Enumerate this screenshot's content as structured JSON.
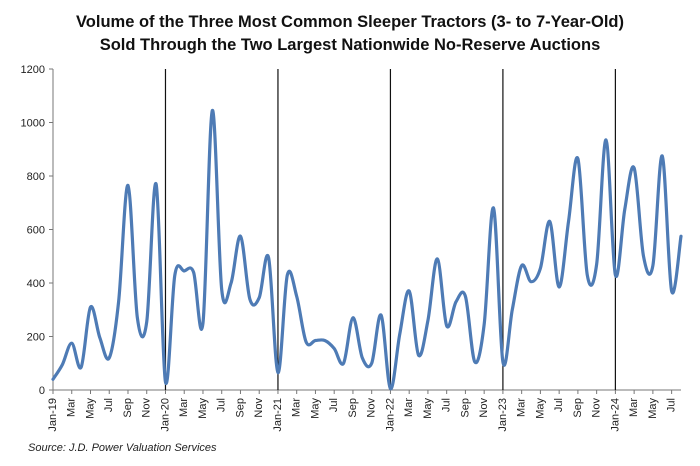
{
  "chart_data": {
    "type": "line",
    "title": "Volume of the Three Most Common Sleeper Tractors (3- to 7-Year-Old) Sold Through the Two Largest Nationwide No-Reserve Auctions",
    "title_lines": [
      "Volume of the Three Most Common Sleeper Tractors (3- to 7-Year-Old)",
      "Sold Through the Two Largest Nationwide No-Reserve Auctions"
    ],
    "xlabel": "",
    "ylabel": "",
    "ylim": [
      0,
      1200
    ],
    "yticks": [
      "0",
      "200",
      "400",
      "600",
      "800",
      "1000",
      "1200"
    ],
    "x_tick_labels": [
      "Jan-19",
      "Mar",
      "May",
      "Jul",
      "Sep",
      "Nov",
      "Jan-20",
      "Mar",
      "May",
      "Jul",
      "Sep",
      "Nov",
      "Jan-21",
      "Mar",
      "May",
      "Jul",
      "Sep",
      "Nov",
      "Jan-22",
      "Mar",
      "May",
      "Jul",
      "Sep",
      "Nov",
      "Jan-23",
      "Mar",
      "May",
      "Jul",
      "Sep",
      "Nov",
      "Jan-24",
      "Mar",
      "May",
      "Jul"
    ],
    "year_dividers": [
      "Jan-20",
      "Jan-21",
      "Jan-22",
      "Jan-23",
      "Jan-24"
    ],
    "series_color": "#4e7bb5",
    "grid": false,
    "legend": "none",
    "x": [
      "Jan-19",
      "Feb-19",
      "Mar-19",
      "Apr-19",
      "May-19",
      "Jun-19",
      "Jul-19",
      "Aug-19",
      "Sep-19",
      "Oct-19",
      "Nov-19",
      "Dec-19",
      "Jan-20",
      "Feb-20",
      "Mar-20",
      "Apr-20",
      "May-20",
      "Jun-20",
      "Jul-20",
      "Aug-20",
      "Sep-20",
      "Oct-20",
      "Nov-20",
      "Dec-20",
      "Jan-21",
      "Feb-21",
      "Mar-21",
      "Apr-21",
      "May-21",
      "Jun-21",
      "Jul-21",
      "Aug-21",
      "Sep-21",
      "Oct-21",
      "Nov-21",
      "Dec-21",
      "Jan-22",
      "Feb-22",
      "Mar-22",
      "Apr-22",
      "May-22",
      "Jun-22",
      "Jul-22",
      "Aug-22",
      "Sep-22",
      "Oct-22",
      "Nov-22",
      "Dec-22",
      "Jan-23",
      "Feb-23",
      "Mar-23",
      "Apr-23",
      "May-23",
      "Jun-23",
      "Jul-23",
      "Aug-23",
      "Sep-23",
      "Oct-23",
      "Nov-23",
      "Dec-23",
      "Jan-24",
      "Feb-24",
      "Mar-24",
      "Apr-24",
      "May-24",
      "Jun-24",
      "Jul-24",
      "Aug-24"
    ],
    "values": [
      40,
      95,
      175,
      85,
      310,
      195,
      120,
      330,
      765,
      270,
      255,
      770,
      30,
      430,
      445,
      440,
      250,
      1045,
      375,
      400,
      575,
      340,
      345,
      495,
      65,
      430,
      350,
      180,
      185,
      185,
      155,
      100,
      270,
      120,
      100,
      280,
      5,
      210,
      370,
      130,
      260,
      490,
      240,
      330,
      350,
      105,
      245,
      680,
      105,
      300,
      465,
      405,
      455,
      630,
      385,
      630,
      865,
      430,
      470,
      935,
      430,
      675,
      830,
      500,
      465,
      875,
      370,
      575
    ]
  },
  "source": "Source: J.D. Power Valuation Services"
}
